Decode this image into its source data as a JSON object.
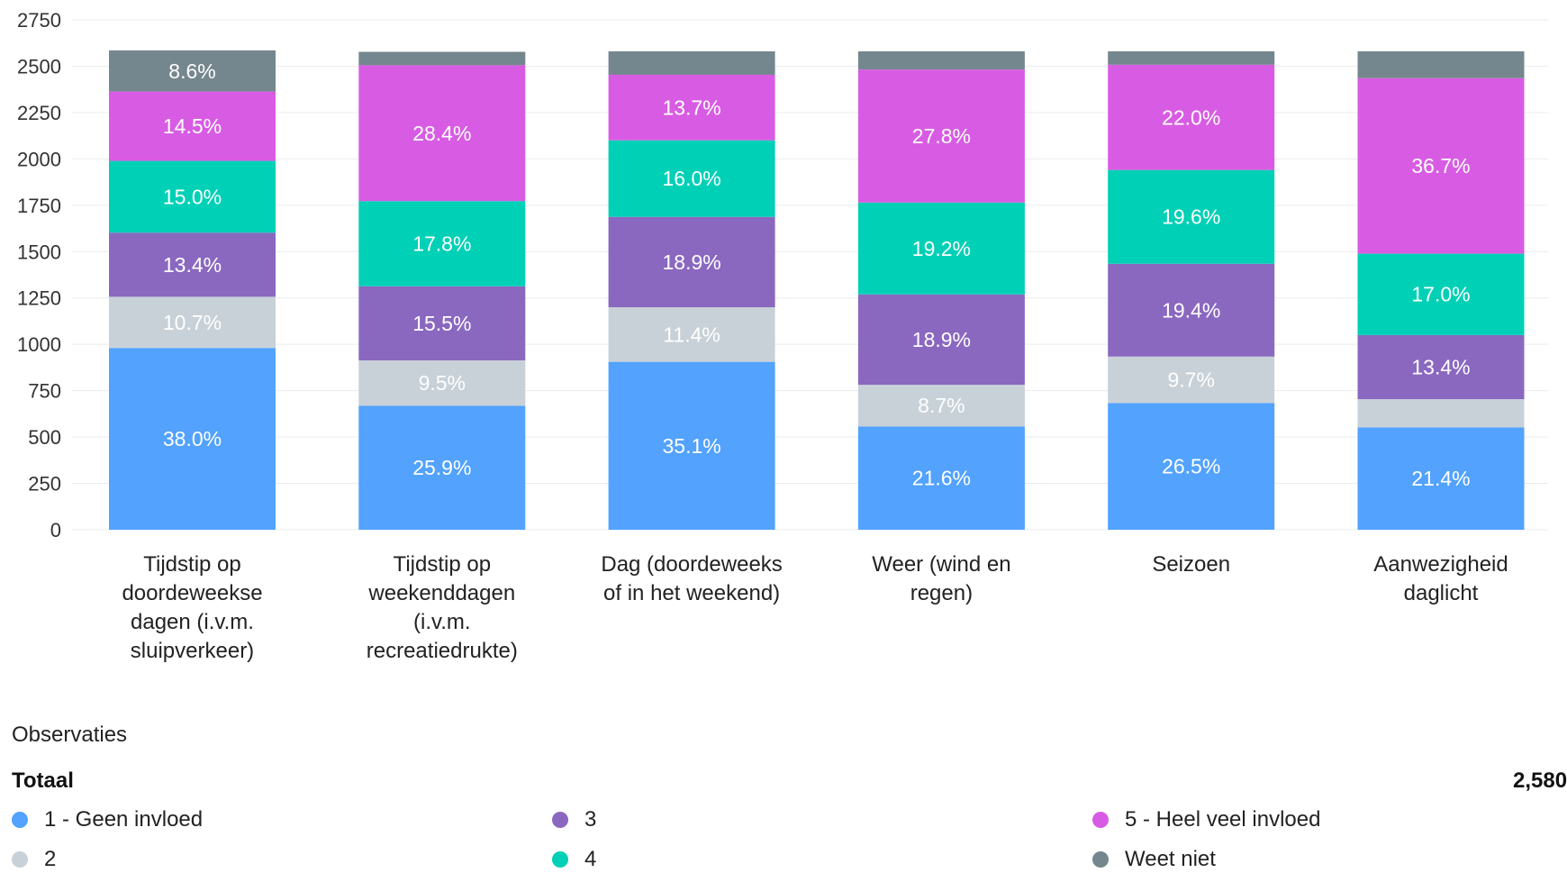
{
  "chart_data": {
    "type": "bar",
    "stacked": true,
    "categories": [
      [
        "Tijdstip op",
        "doordeweekse",
        "dagen (i.v.m.",
        "sluipverkeer)"
      ],
      [
        "Tijdstip op",
        "weekenddagen",
        "(i.v.m.",
        "recreatiedrukte)"
      ],
      [
        "Dag (doordeweeks",
        "of in het weekend)"
      ],
      [
        "Weer (wind en",
        "regen)"
      ],
      [
        "Seizoen"
      ],
      [
        "Aanwezigheid",
        "daglicht"
      ]
    ],
    "total_observations": 2580,
    "ylim": [
      0,
      2750
    ],
    "yticks": [
      0,
      250,
      500,
      750,
      1000,
      1250,
      1500,
      1750,
      2000,
      2250,
      2500,
      2750
    ],
    "grid": true,
    "series": [
      {
        "name": "1 - Geen invloed",
        "color": "#52a2fe",
        "values": [
          38.0,
          25.9,
          35.1,
          21.6,
          26.5,
          21.4
        ],
        "labels": [
          "38.0%",
          "25.9%",
          "35.1%",
          "21.6%",
          "26.5%",
          "21.4%"
        ]
      },
      {
        "name": "2",
        "color": "#c8d1d8",
        "values": [
          10.7,
          9.5,
          11.4,
          8.7,
          9.7,
          5.9
        ],
        "labels": [
          "10.7%",
          "9.5%",
          "11.4%",
          "8.7%",
          "9.7%",
          ""
        ]
      },
      {
        "name": "3",
        "color": "#8a68c0",
        "values": [
          13.4,
          15.5,
          18.9,
          18.9,
          19.4,
          13.4
        ],
        "labels": [
          "13.4%",
          "15.5%",
          "18.9%",
          "18.9%",
          "19.4%",
          "13.4%"
        ]
      },
      {
        "name": "4",
        "color": "#00d0b5",
        "values": [
          15.0,
          17.8,
          16.0,
          19.2,
          19.6,
          17.0
        ],
        "labels": [
          "15.0%",
          "17.8%",
          "16.0%",
          "19.2%",
          "19.6%",
          "17.0%"
        ]
      },
      {
        "name": "5 - Heel veel invloed",
        "color": "#d85ce3",
        "values": [
          14.5,
          28.4,
          13.7,
          27.8,
          22.0,
          36.7
        ],
        "labels": [
          "14.5%",
          "28.4%",
          "13.7%",
          "27.8%",
          "22.0%",
          "36.7%"
        ]
      },
      {
        "name": "Weet niet",
        "color": "#75878e",
        "values": [
          8.6,
          2.8,
          4.9,
          3.8,
          2.8,
          5.6
        ],
        "labels": [
          "8.6%",
          "",
          "",
          "",
          "",
          ""
        ]
      }
    ]
  },
  "footer": {
    "observations_title": "Observaties",
    "total_label": "Totaal",
    "total_value": "2,580"
  }
}
